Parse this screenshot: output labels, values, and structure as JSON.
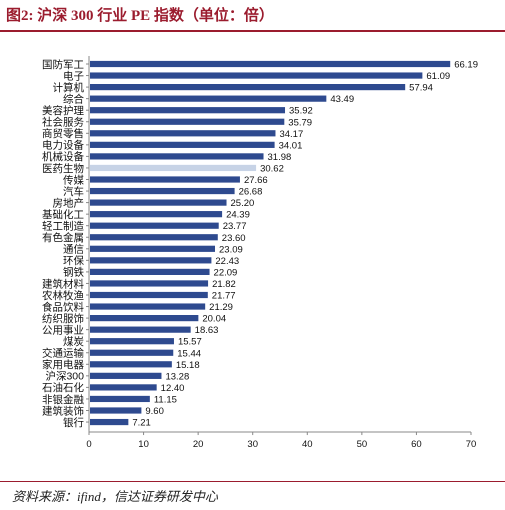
{
  "title": "图2: 沪深 300 行业 PE 指数（单位：倍）",
  "source": "资料来源：ifind，信达证券研发中心",
  "colors": {
    "bar": "#2e4a8f",
    "highlight": "#c7d3e6",
    "title": "#9b1c2e"
  },
  "chart_data": {
    "type": "bar",
    "orientation": "horizontal",
    "categories": [
      "国防军工",
      "电子",
      "计算机",
      "综合",
      "美容护理",
      "社会服务",
      "商贸零售",
      "电力设备",
      "机械设备",
      "医药生物",
      "传媒",
      "汽车",
      "房地产",
      "基础化工",
      "轻工制造",
      "有色金属",
      "通信",
      "环保",
      "钢铁",
      "建筑材料",
      "农林牧渔",
      "食品饮料",
      "纺织服饰",
      "公用事业",
      "煤炭",
      "交通运输",
      "家用电器",
      "沪深300",
      "石油石化",
      "非银金融",
      "建筑装饰",
      "银行"
    ],
    "values": [
      66.19,
      61.09,
      57.94,
      43.49,
      35.92,
      35.79,
      34.17,
      34.01,
      31.98,
      30.62,
      27.66,
      26.68,
      25.2,
      24.39,
      23.77,
      23.6,
      23.09,
      22.43,
      22.09,
      21.82,
      21.77,
      21.29,
      20.04,
      18.63,
      15.57,
      15.44,
      15.18,
      13.28,
      12.4,
      11.15,
      9.6,
      7.21
    ],
    "value_labels": [
      "66.19",
      "61.09",
      "57.94",
      "43.49",
      "35.92",
      "35.79",
      "34.17",
      "34.01",
      "31.98",
      "30.62",
      "27.66",
      "26.68",
      "25.20",
      "24.39",
      "23.77",
      "23.60",
      "23.09",
      "22.43",
      "22.09",
      "21.82",
      "21.77",
      "21.29",
      "20.04",
      "18.63",
      "15.57",
      "15.44",
      "15.18",
      "13.28",
      "12.40",
      "11.15",
      "9.60",
      "7.21"
    ],
    "highlight_category": "医药生物",
    "xlim": [
      0,
      70
    ],
    "xticks": [
      "0",
      "10",
      "20",
      "30",
      "40",
      "50",
      "60",
      "70"
    ],
    "grid": false
  }
}
